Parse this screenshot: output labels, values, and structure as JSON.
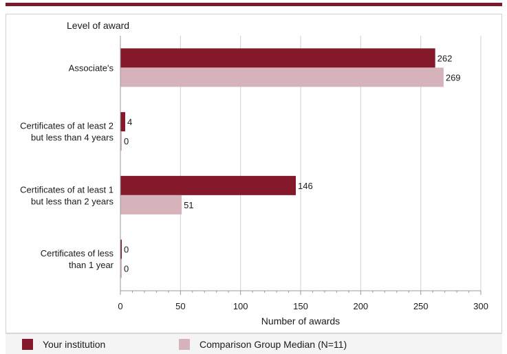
{
  "chart_data": {
    "type": "bar",
    "orientation": "horizontal",
    "ylabel": "Level of award",
    "xlabel": "Number of awards",
    "xlim": [
      0,
      300
    ],
    "xticks": [
      0,
      50,
      100,
      150,
      200,
      250,
      300
    ],
    "grid": true,
    "categories": [
      [
        "Associate's"
      ],
      [
        "Certificates of at least 2",
        "but less than 4 years"
      ],
      [
        "Certificates of at least 1",
        "but  less than 2 years"
      ],
      [
        "Certificates of less",
        "than 1 year"
      ]
    ],
    "series": [
      {
        "name": "Your institution",
        "color": "#85192c",
        "values": [
          262,
          4,
          146,
          0
        ]
      },
      {
        "name": "Comparison Group Median (N=11)",
        "color": "#d6b3ba",
        "values": [
          269,
          0,
          51,
          0
        ]
      }
    ],
    "legend_position": "bottom"
  }
}
